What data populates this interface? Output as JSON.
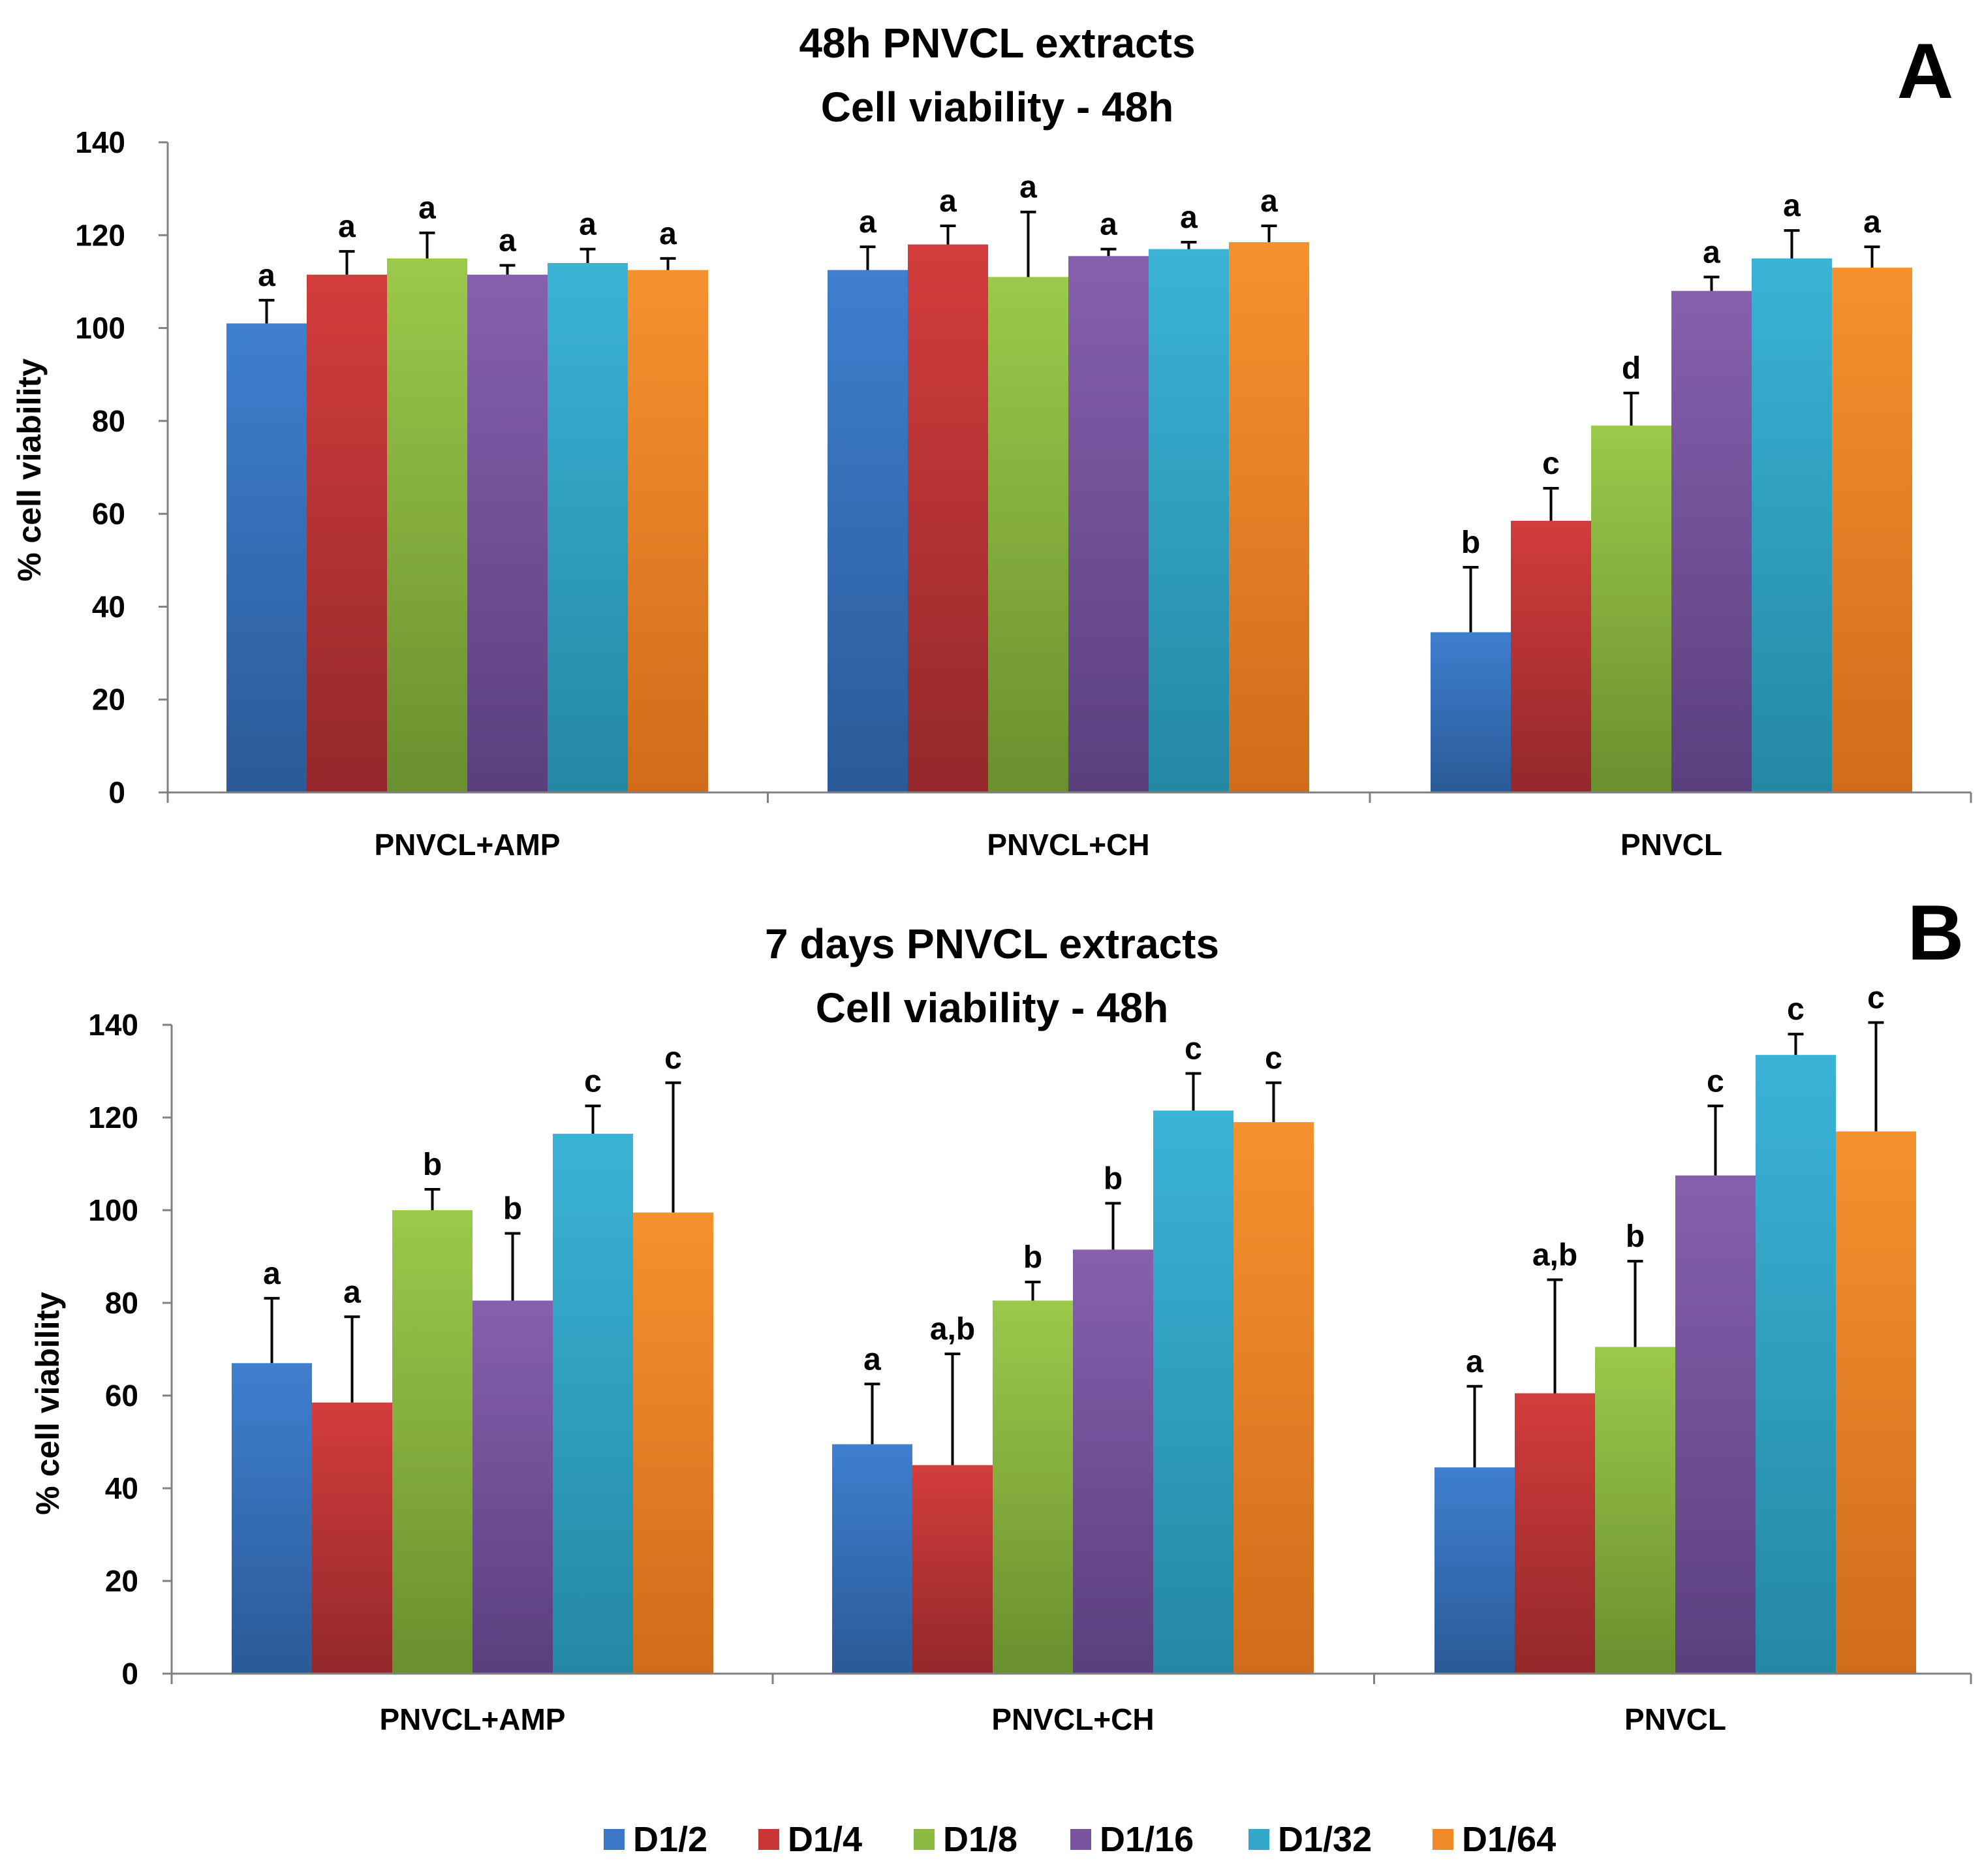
{
  "series_colors": [
    {
      "top": "#3f7fcf",
      "bottom": "#2a5a98"
    },
    {
      "top": "#d33c3c",
      "bottom": "#93282a"
    },
    {
      "top": "#9bc94a",
      "bottom": "#6a8f2f"
    },
    {
      "top": "#8660ad",
      "bottom": "#5a3f7e"
    },
    {
      "top": "#3ab3d7",
      "bottom": "#2488a3"
    },
    {
      "top": "#f6912f",
      "bottom": "#d06c1b"
    }
  ],
  "legend": [
    "D1/2",
    "D1/4",
    "D1/8",
    "D1/16",
    "D1/32",
    "D1/64"
  ],
  "chart_data": [
    {
      "type": "bar",
      "panel": "A",
      "title": [
        "48h PNVCL extracts",
        "Cell viability - 48h"
      ],
      "ylabel": "% cell viability",
      "xlabel": "",
      "ylim": [
        0,
        140
      ],
      "yticks": [
        0,
        20,
        40,
        60,
        80,
        100,
        120,
        140
      ],
      "categories": [
        "PNVCL+AMP",
        "PNVCL+CH",
        "PNVCL"
      ],
      "series": [
        {
          "name": "D1/2",
          "values": [
            101,
            112.5,
            34.5
          ],
          "errors": [
            5,
            5,
            14
          ],
          "labels": [
            "a",
            "a",
            "b"
          ]
        },
        {
          "name": "D1/4",
          "values": [
            111.5,
            118,
            58.5
          ],
          "errors": [
            5,
            4,
            7
          ],
          "labels": [
            "a",
            "a",
            "c"
          ]
        },
        {
          "name": "D1/8",
          "values": [
            115,
            111,
            79
          ],
          "errors": [
            5.5,
            14,
            7
          ],
          "labels": [
            "a",
            "a",
            "d"
          ]
        },
        {
          "name": "D1/16",
          "values": [
            111.5,
            115.5,
            108
          ],
          "errors": [
            2,
            1.5,
            3
          ],
          "labels": [
            "a",
            "a",
            "a"
          ]
        },
        {
          "name": "D1/32",
          "values": [
            114,
            117,
            115
          ],
          "errors": [
            3,
            1.5,
            6
          ],
          "labels": [
            "a",
            "a",
            "a"
          ]
        },
        {
          "name": "D1/64",
          "values": [
            112.5,
            118.5,
            113
          ],
          "errors": [
            2.5,
            3.5,
            4.5
          ],
          "labels": [
            "a",
            "a",
            "a"
          ]
        }
      ]
    },
    {
      "type": "bar",
      "panel": "B",
      "title": [
        "7 days PNVCL extracts",
        "Cell viability - 48h"
      ],
      "ylabel": "% cell viability",
      "xlabel": "",
      "ylim": [
        0,
        140
      ],
      "yticks": [
        0,
        20,
        40,
        60,
        80,
        100,
        120,
        140
      ],
      "categories": [
        "PNVCL+AMP",
        "PNVCL+CH",
        "PNVCL"
      ],
      "series": [
        {
          "name": "D1/2",
          "values": [
            67,
            49.5,
            44.5
          ],
          "errors": [
            14,
            13,
            17.5
          ],
          "labels": [
            "a",
            "a",
            "a"
          ]
        },
        {
          "name": "D1/4",
          "values": [
            58.5,
            45,
            60.5
          ],
          "errors": [
            18.5,
            24,
            24.5
          ],
          "labels": [
            "a",
            "a,b",
            "a,b"
          ]
        },
        {
          "name": "D1/8",
          "values": [
            100,
            80.5,
            70.5
          ],
          "errors": [
            4.5,
            4,
            18.5
          ],
          "labels": [
            "b",
            "b",
            "b"
          ]
        },
        {
          "name": "D1/16",
          "values": [
            80.5,
            91.5,
            107.5
          ],
          "errors": [
            14.5,
            10,
            15
          ],
          "labels": [
            "b",
            "b",
            "c"
          ]
        },
        {
          "name": "D1/32",
          "values": [
            116.5,
            121.5,
            133.5
          ],
          "errors": [
            6,
            8,
            4.5
          ],
          "labels": [
            "c",
            "c",
            "c"
          ]
        },
        {
          "name": "D1/64",
          "values": [
            99.5,
            119,
            117
          ],
          "errors": [
            28,
            8.5,
            23.5
          ],
          "labels": [
            "c",
            "c",
            "c"
          ]
        }
      ]
    }
  ]
}
